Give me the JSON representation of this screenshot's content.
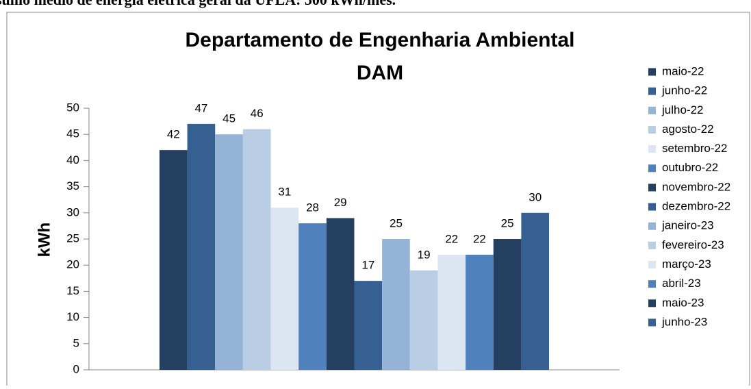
{
  "caption": "sumo médio de energia elétrica geral da UFLA: 500 kWh/mês.",
  "chart_data": {
    "type": "bar",
    "title": [
      "Departamento de Engenharia Ambiental",
      "DAM"
    ],
    "y_label": "kWh",
    "categories": [
      "maio-22",
      "junho-22",
      "julho-22",
      "agosto-22",
      "setembro-22",
      "outubro-22",
      "novembro-22",
      "dezembro-22",
      "janeiro-23",
      "fevereiro-23",
      "março-23",
      "abril-23",
      "maio-23",
      "junho-23"
    ],
    "values": [
      42,
      47,
      45,
      46,
      31,
      28,
      29,
      17,
      25,
      19,
      22,
      22,
      25,
      30
    ],
    "colors": [
      "#243f60",
      "#376092",
      "#95b3d7",
      "#b9cde5",
      "#dce6f2",
      "#4f81bd",
      "#243f60",
      "#376092",
      "#95b3d7",
      "#b9cde5",
      "#dce6f2",
      "#4f81bd",
      "#243f60",
      "#376092"
    ],
    "ylim": [
      0,
      50
    ],
    "yticks": [
      0,
      5,
      10,
      15,
      20,
      25,
      30,
      35,
      40,
      45,
      50
    ],
    "legend": "right"
  }
}
